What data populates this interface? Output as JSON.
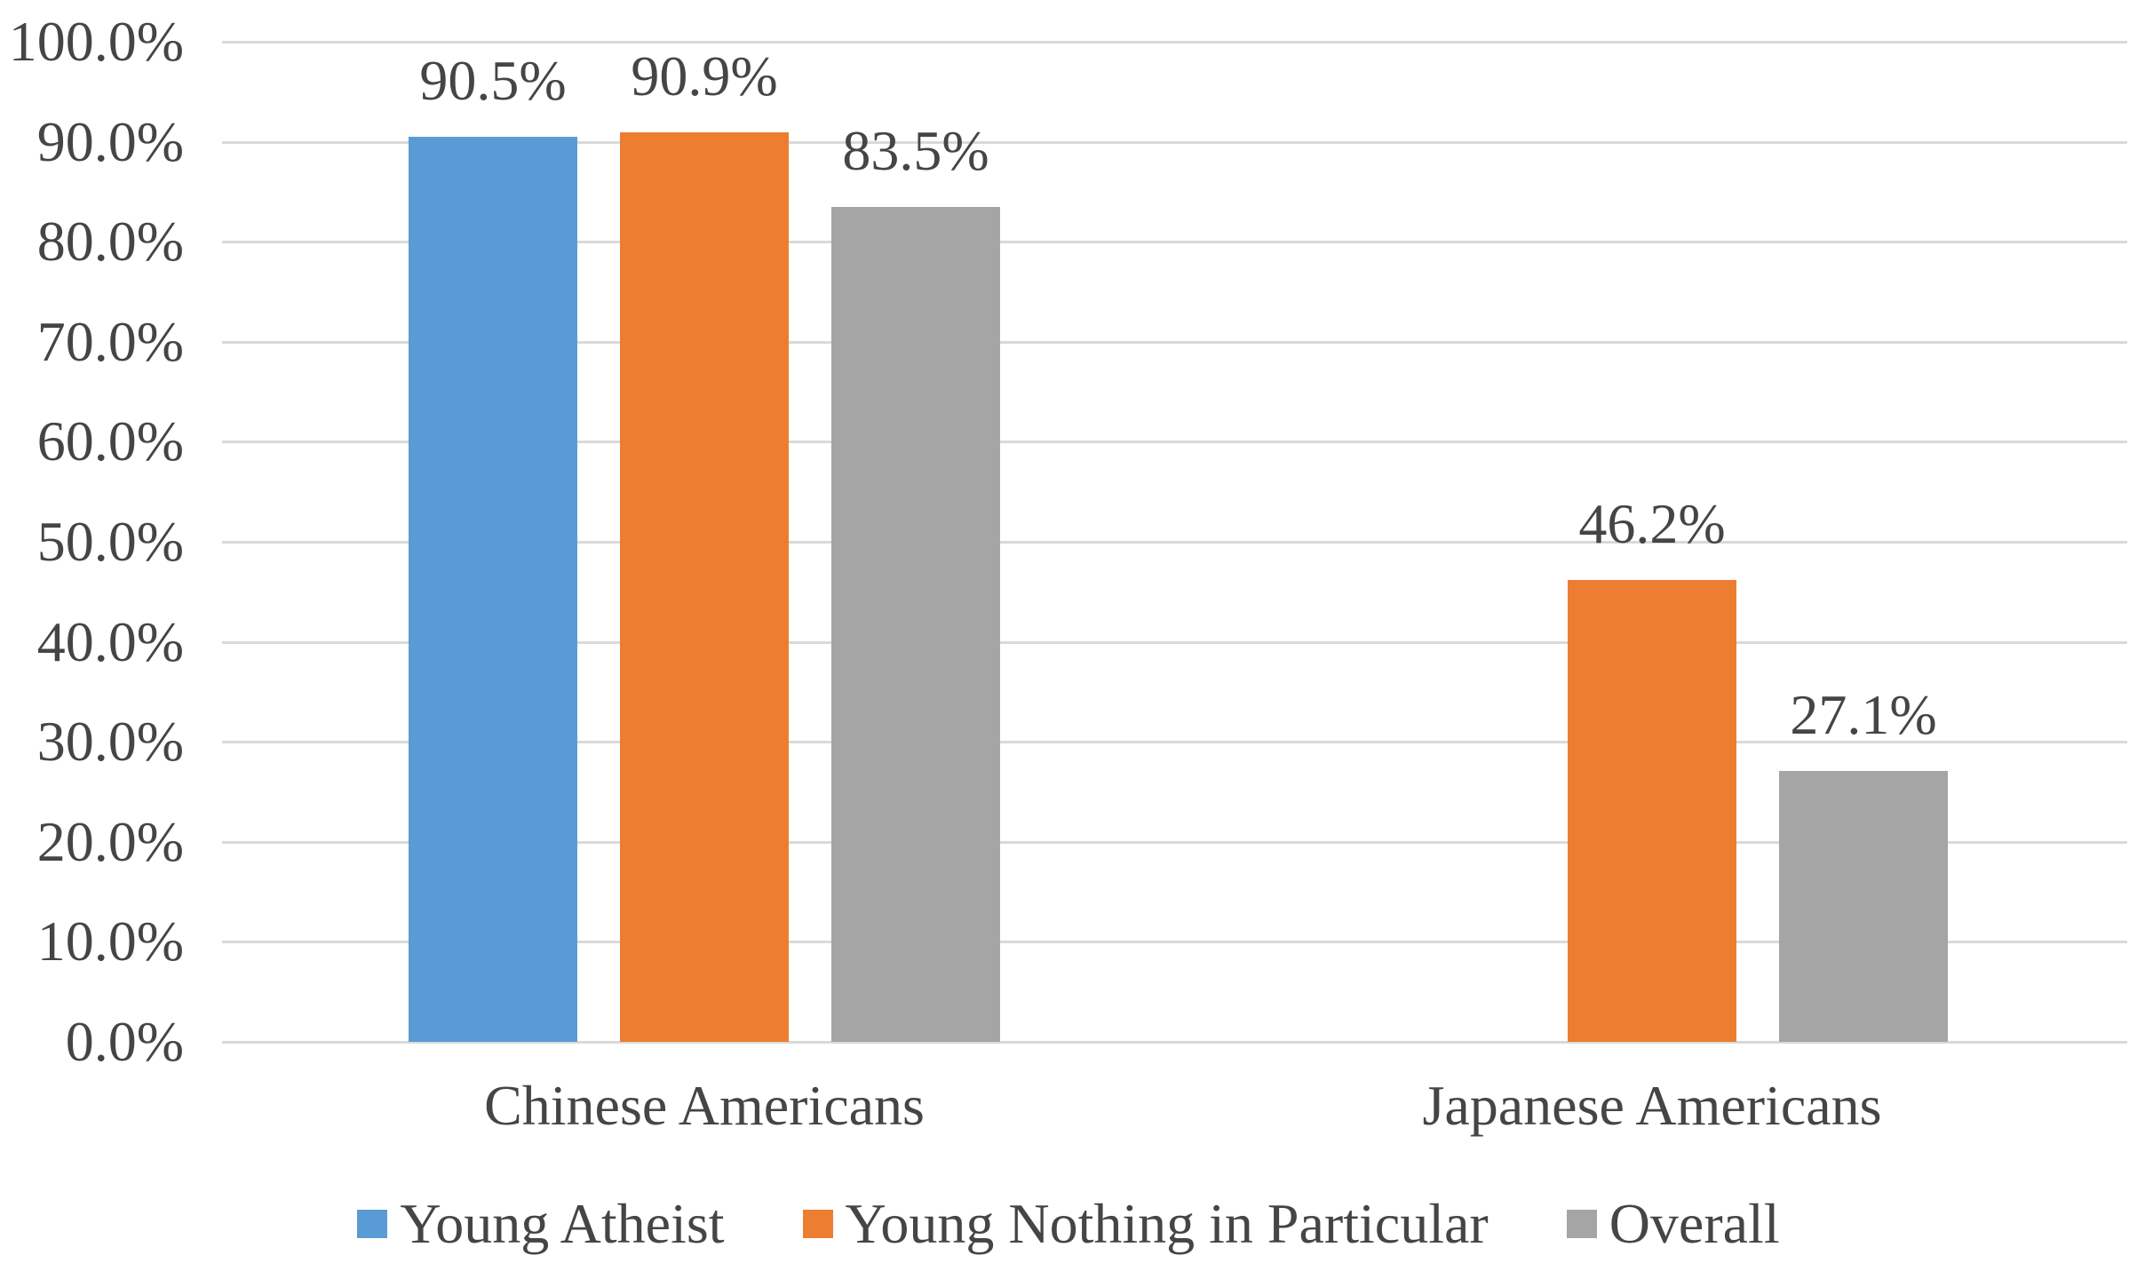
{
  "chart_data": {
    "type": "bar",
    "categories": [
      "Chinese Americans",
      "Japanese Americans"
    ],
    "series": [
      {
        "name": "Young Atheist",
        "color": "#5B9BD5",
        "values": [
          90.5,
          null
        ],
        "labels": [
          "90.5%",
          null
        ]
      },
      {
        "name": "Young Nothing in Particular",
        "color": "#ED7D31",
        "values": [
          90.9,
          46.2
        ],
        "labels": [
          "90.9%",
          "46.2%"
        ]
      },
      {
        "name": "Overall",
        "color": "#A5A5A5",
        "values": [
          83.5,
          27.1
        ],
        "labels": [
          "83.5%",
          "27.1%"
        ]
      }
    ],
    "y_axis": {
      "min": 0,
      "max": 100,
      "step": 10,
      "tick_labels": [
        "0.0%",
        "10.0%",
        "20.0%",
        "30.0%",
        "40.0%",
        "50.0%",
        "60.0%",
        "70.0%",
        "80.0%",
        "90.0%",
        "100.0%"
      ]
    },
    "grid": true,
    "legend_position": "bottom",
    "colors": {
      "gridline": "#D9D9D9",
      "text": "#454545"
    }
  }
}
